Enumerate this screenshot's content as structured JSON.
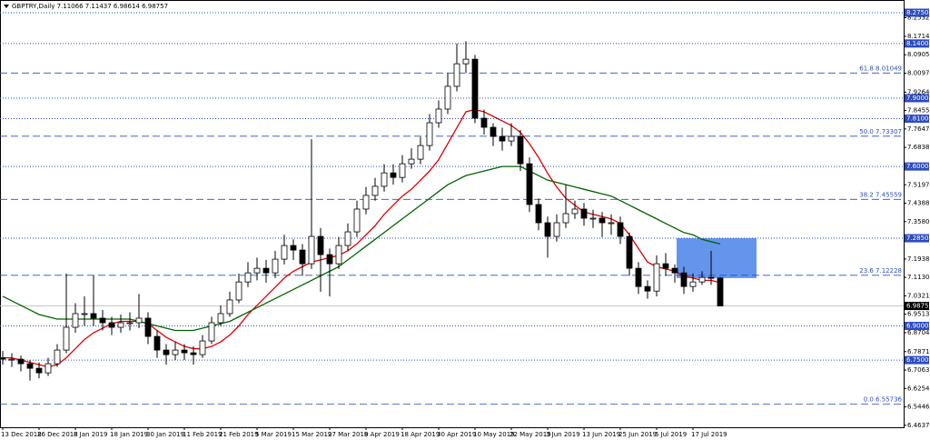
{
  "chart_data": {
    "type": "candlestick",
    "title": "GBPTRY,Daily  7.11066 7.11437 6.98614 6.98757",
    "categories": [
      "13 Dec 2018",
      null,
      null,
      null,
      "26 Dec 2018",
      null,
      null,
      null,
      "8 Jan 2019",
      null,
      null,
      null,
      "18 Jan 2019",
      null,
      null,
      null,
      "30 Jan 2019",
      null,
      null,
      null,
      "11 Feb 2019",
      null,
      null,
      null,
      "21 Feb 2019",
      null,
      null,
      null,
      "5 Mar 2019",
      null,
      null,
      null,
      "15 Mar 2019",
      null,
      null,
      null,
      "27 Mar 2019",
      null,
      null,
      null,
      "8 Apr 2019",
      null,
      null,
      null,
      "18 Apr 2019",
      null,
      null,
      null,
      "30 Apr 2019",
      null,
      null,
      null,
      "10 May 2019",
      null,
      null,
      null,
      "22 May 2019",
      null,
      null,
      null,
      "3 Jun 2019",
      null,
      null,
      null,
      "13 Jun 2019",
      null,
      null,
      null,
      "25 Jun 2019",
      null,
      null,
      null,
      "5 Jul 2019",
      null,
      null,
      null,
      "17 Jul 2019",
      null,
      null,
      null
    ],
    "open": [
      6.76,
      6.754,
      6.754,
      6.734,
      6.714,
      6.694,
      6.734,
      6.794,
      6.894,
      6.954,
      6.954,
      6.934,
      6.914,
      6.894,
      6.914,
      6.914,
      6.934,
      6.854,
      6.794,
      6.774,
      6.794,
      6.782,
      6.774,
      6.834,
      6.914,
      6.954,
      7.014,
      7.093,
      7.133,
      7.153,
      7.133,
      7.193,
      7.253,
      7.233,
      7.173,
      7.293,
      7.213,
      7.173,
      7.253,
      7.313,
      7.413,
      7.473,
      7.513,
      7.572,
      7.552,
      7.612,
      7.632,
      7.692,
      7.792,
      7.852,
      7.952,
      8.051,
      8.071,
      7.812,
      7.772,
      7.732,
      7.712,
      7.732,
      7.612,
      7.433,
      7.353,
      7.293,
      7.353,
      7.393,
      7.413,
      7.373,
      7.373,
      7.353,
      7.353,
      7.293,
      7.153,
      7.073,
      7.053,
      7.173,
      7.153,
      7.133,
      7.073,
      7.093,
      7.113,
      7.11066
    ],
    "high": [
      6.79,
      6.78,
      6.77,
      6.75,
      6.74,
      6.76,
      6.82,
      7.13,
      7.0,
      7.03,
      7.12,
      6.97,
      6.94,
      6.95,
      6.96,
      7.04,
      6.96,
      6.88,
      6.82,
      6.83,
      6.82,
      6.81,
      6.86,
      6.94,
      6.99,
      7.05,
      7.13,
      7.18,
      7.2,
      7.19,
      7.23,
      7.3,
      7.28,
      7.26,
      7.72,
      7.33,
      7.24,
      7.29,
      7.35,
      7.45,
      7.51,
      7.55,
      7.61,
      7.61,
      7.65,
      7.68,
      7.73,
      7.83,
      7.89,
      8.01,
      8.14,
      8.15,
      8.09,
      7.85,
      7.79,
      7.77,
      7.79,
      7.76,
      7.64,
      7.46,
      7.38,
      7.39,
      7.52,
      7.45,
      7.44,
      7.41,
      7.4,
      7.39,
      7.38,
      7.31,
      7.18,
      7.1,
      7.21,
      7.22,
      7.17,
      7.16,
      7.13,
      7.14,
      7.23,
      7.11437
    ],
    "low": [
      6.73,
      6.72,
      6.7,
      6.66,
      6.67,
      6.68,
      6.72,
      6.78,
      6.87,
      6.9,
      6.9,
      6.88,
      6.86,
      6.87,
      6.88,
      6.89,
      6.82,
      6.76,
      6.73,
      6.75,
      6.75,
      6.73,
      6.76,
      6.82,
      6.9,
      6.94,
      7.0,
      7.07,
      7.1,
      7.09,
      7.11,
      7.17,
      7.19,
      7.12,
      7.15,
      7.05,
      7.03,
      7.15,
      7.23,
      7.29,
      7.39,
      7.45,
      7.49,
      7.52,
      7.53,
      7.59,
      7.61,
      7.67,
      7.77,
      7.83,
      7.93,
      8.01,
      7.79,
      7.74,
      7.69,
      7.67,
      7.69,
      7.58,
      7.4,
      7.32,
      7.2,
      7.27,
      7.33,
      7.37,
      7.34,
      7.33,
      7.29,
      7.3,
      7.26,
      7.12,
      7.04,
      7.02,
      7.03,
      7.12,
      7.09,
      7.04,
      7.05,
      7.08,
      7.08,
      6.98614
    ],
    "close": [
      6.754,
      6.754,
      6.734,
      6.714,
      6.694,
      6.734,
      6.794,
      6.894,
      6.954,
      6.954,
      6.934,
      6.914,
      6.894,
      6.914,
      6.914,
      6.934,
      6.854,
      6.794,
      6.774,
      6.794,
      6.782,
      6.774,
      6.834,
      6.914,
      6.954,
      7.014,
      7.093,
      7.133,
      7.153,
      7.133,
      7.193,
      7.253,
      7.233,
      7.173,
      7.293,
      7.213,
      7.173,
      7.253,
      7.313,
      7.413,
      7.473,
      7.513,
      7.572,
      7.552,
      7.612,
      7.632,
      7.692,
      7.792,
      7.852,
      7.952,
      8.051,
      8.071,
      7.812,
      7.772,
      7.732,
      7.712,
      7.732,
      7.612,
      7.433,
      7.353,
      7.293,
      7.353,
      7.393,
      7.413,
      7.373,
      7.373,
      7.353,
      7.353,
      7.293,
      7.153,
      7.073,
      7.053,
      7.173,
      7.153,
      7.133,
      7.073,
      7.093,
      7.113,
      7.11,
      6.98757
    ],
    "series": [
      {
        "color": "#e00000",
        "values": [
          6.76,
          6.76,
          6.75,
          6.74,
          6.73,
          6.72,
          6.73,
          6.76,
          6.8,
          6.84,
          6.87,
          6.89,
          6.91,
          6.92,
          6.92,
          6.92,
          6.91,
          6.88,
          6.85,
          6.83,
          6.81,
          6.8,
          6.8,
          6.81,
          6.83,
          6.86,
          6.9,
          6.95,
          6.99,
          7.03,
          7.07,
          7.11,
          7.14,
          7.16,
          7.18,
          7.19,
          7.2,
          7.21,
          7.23,
          7.26,
          7.3,
          7.34,
          7.39,
          7.43,
          7.47,
          7.5,
          7.54,
          7.58,
          7.63,
          7.7,
          7.77,
          7.84,
          7.85,
          7.84,
          7.82,
          7.8,
          7.78,
          7.75,
          7.7,
          7.64,
          7.57,
          7.51,
          7.46,
          7.43,
          7.4,
          7.39,
          7.38,
          7.37,
          7.35,
          7.3,
          7.24,
          7.18,
          7.16,
          7.15,
          7.14,
          7.12,
          7.11,
          7.1,
          7.1,
          7.09
        ]
      },
      {
        "color": "#006400",
        "values": [
          7.03,
          7.01,
          6.99,
          6.97,
          6.95,
          6.94,
          6.93,
          6.93,
          6.93,
          6.93,
          6.93,
          6.93,
          6.93,
          6.93,
          6.93,
          6.92,
          6.91,
          6.9,
          6.89,
          6.88,
          6.88,
          6.88,
          6.89,
          6.9,
          6.91,
          6.92,
          6.94,
          6.96,
          6.98,
          7.0,
          7.02,
          7.04,
          7.06,
          7.08,
          7.1,
          7.12,
          7.14,
          7.16,
          7.19,
          7.22,
          7.25,
          7.28,
          7.31,
          7.34,
          7.37,
          7.4,
          7.43,
          7.46,
          7.49,
          7.52,
          7.54,
          7.56,
          7.57,
          7.58,
          7.59,
          7.6,
          7.6,
          7.6,
          7.58,
          7.56,
          7.54,
          7.53,
          7.52,
          7.51,
          7.5,
          7.49,
          7.48,
          7.47,
          7.45,
          7.43,
          7.41,
          7.39,
          7.37,
          7.35,
          7.33,
          7.31,
          7.3,
          7.28,
          7.27,
          7.26
        ]
      }
    ],
    "ylim": [
      6.455,
      8.311
    ],
    "yticks": [
      {
        "value": 8.2532,
        "label": "8.25320"
      },
      {
        "value": 8.1714,
        "label": "8.17140"
      },
      {
        "value": 8.09055,
        "label": "8.09055"
      },
      {
        "value": 8.0097,
        "label": "8.00970"
      },
      {
        "value": 7.9264,
        "label": "7.92640"
      },
      {
        "value": 7.84555,
        "label": "7.84555"
      },
      {
        "value": 7.7647,
        "label": "7.76470"
      },
      {
        "value": 7.68385,
        "label": "7.68385"
      },
      {
        "value": 7.5197,
        "label": "7.51970"
      },
      {
        "value": 7.43885,
        "label": "7.43885"
      },
      {
        "value": 7.358,
        "label": "7.35800"
      },
      {
        "value": 7.19385,
        "label": "7.19385"
      },
      {
        "value": 7.113,
        "label": "7.11300"
      },
      {
        "value": 7.03215,
        "label": "7.03215"
      },
      {
        "value": 6.9513,
        "label": "6.95130"
      },
      {
        "value": 6.87045,
        "label": "6.87045"
      },
      {
        "value": 6.78715,
        "label": "6.78715"
      },
      {
        "value": 6.7063,
        "label": "6.70630"
      },
      {
        "value": 6.62545,
        "label": "6.62545"
      },
      {
        "value": 6.5446,
        "label": "6.54460"
      },
      {
        "value": 6.46375,
        "label": "6.46375"
      }
    ],
    "levels": [
      {
        "value": 8.275,
        "label": "8.27500"
      },
      {
        "value": 8.14,
        "label": "8.14000"
      },
      {
        "value": 7.9,
        "label": "7.90000"
      },
      {
        "value": 7.81,
        "label": "7.81000"
      },
      {
        "value": 7.6,
        "label": "7.60000"
      },
      {
        "value": 7.285,
        "label": "7.28500"
      },
      {
        "value": 6.9,
        "label": "6.90000"
      },
      {
        "value": 6.75,
        "label": "6.75000"
      }
    ],
    "fib_levels": [
      {
        "value": 8.01049,
        "label": "61.8 8.01049"
      },
      {
        "value": 7.73307,
        "label": "50.0 7.73307"
      },
      {
        "value": 7.45559,
        "label": "38.2 7.45559"
      },
      {
        "value": 7.12228,
        "label": "23.6 7.12228"
      },
      {
        "value": 6.55736,
        "label": "0.0 6.55736"
      }
    ],
    "current_price": {
      "value": 6.98757,
      "label": "6.98757"
    },
    "zone": [
      7.11,
      7.285
    ],
    "level_color": "#2c4cc0",
    "zone_color": "#6495ed"
  }
}
